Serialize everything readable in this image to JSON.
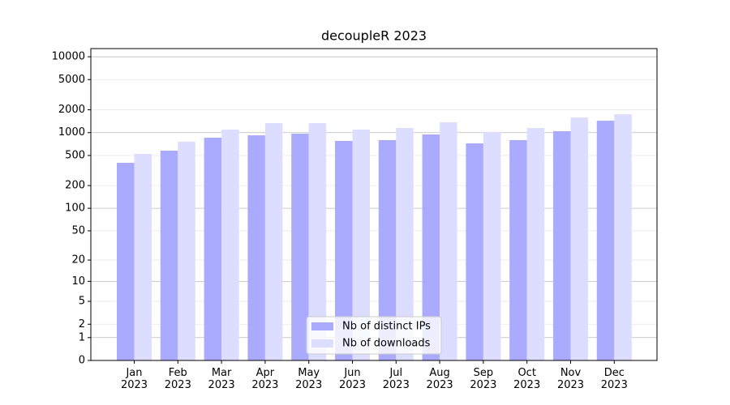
{
  "chart_data": {
    "type": "bar",
    "title": "decoupleR 2023",
    "categories": [
      "Jan\n2023",
      "Feb\n2023",
      "Mar\n2023",
      "Apr\n2023",
      "May\n2023",
      "Jun\n2023",
      "Jul\n2023",
      "Aug\n2023",
      "Sep\n2023",
      "Oct\n2023",
      "Nov\n2023",
      "Dec\n2023"
    ],
    "series": [
      {
        "name": "Nb of distinct IPs",
        "color": "#aaaaff",
        "values": [
          400,
          578,
          857,
          922,
          970,
          777,
          797,
          946,
          722,
          797,
          1045,
          1436
        ]
      },
      {
        "name": "Nb of downloads",
        "color": "#ddddff",
        "values": [
          525,
          760,
          1095,
          1335,
          1335,
          1095,
          1150,
          1368,
          1018,
          1150,
          1585,
          1750
        ]
      }
    ],
    "yscale": "log1p",
    "ylim": [
      0,
      12800
    ],
    "yticks": [
      0,
      1,
      2,
      5,
      10,
      20,
      50,
      100,
      200,
      500,
      1000,
      2000,
      5000,
      10000
    ],
    "grid": true,
    "legend": "lower center"
  }
}
